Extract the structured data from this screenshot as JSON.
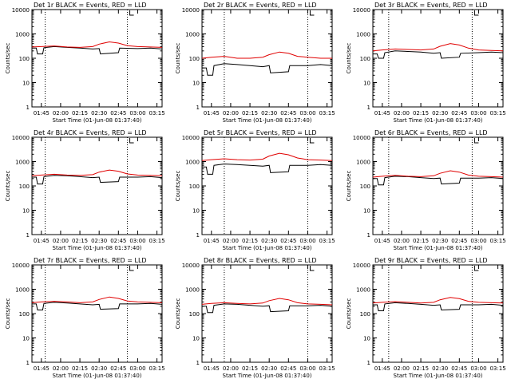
{
  "figure": {
    "ylabel": "Counts/sec",
    "xlabel": "Start Time (01-Jun-08 01:37:40)",
    "legend_suffix": "BLACK = Events, RED = LLD",
    "y_ticks": [
      "1",
      "10",
      "100",
      "1000",
      "10000"
    ],
    "x_ticks": [
      "01:45",
      "02:00",
      "02:15",
      "02:30",
      "02:45",
      "03:00",
      "03:15"
    ]
  },
  "colors": {
    "events": "#000000",
    "lld": "#e00000",
    "axes": "#000000"
  },
  "chart_data": [
    {
      "type": "line",
      "title": "Det 1r",
      "ylog": true,
      "ylim": [
        1,
        10000
      ],
      "xlim": [
        "01:37:40",
        "03:19:00"
      ],
      "x_ticks_label": [
        "01:45",
        "02:00",
        "02:15",
        "02:30",
        "02:45",
        "03:00",
        "03:15"
      ],
      "dotted_vlines": [
        "01:48",
        "02:52"
      ],
      "marker_L": "02:52",
      "series": [
        {
          "name": "BLACK = Events",
          "x": [
            "01:37:40",
            "01:41",
            "01:42",
            "01:46",
            "01:47",
            "01:55",
            "02:05",
            "02:15",
            "02:25",
            "02:30",
            "02:31",
            "02:45",
            "02:46",
            "03:00",
            "03:10",
            "03:19"
          ],
          "values": [
            260,
            260,
            150,
            150,
            270,
            300,
            280,
            260,
            240,
            250,
            150,
            170,
            260,
            250,
            260,
            240
          ]
        },
        {
          "name": "RED = LLD",
          "x": [
            "01:37:40",
            "01:45",
            "01:55",
            "02:05",
            "02:15",
            "02:25",
            "02:30",
            "02:38",
            "02:45",
            "02:52",
            "03:00",
            "03:10",
            "03:19"
          ],
          "values": [
            290,
            300,
            320,
            290,
            280,
            300,
            380,
            470,
            420,
            330,
            300,
            290,
            280
          ]
        }
      ]
    },
    {
      "type": "line",
      "title": "Det 2r",
      "ylog": true,
      "ylim": [
        1,
        10000
      ],
      "xlim": [
        "01:37:40",
        "03:19:00"
      ],
      "x_ticks_label": [
        "01:45",
        "02:00",
        "02:15",
        "02:30",
        "02:45",
        "03:00",
        "03:15"
      ],
      "dotted_vlines": [
        "01:55",
        "03:00"
      ],
      "marker_L": "03:00",
      "series": [
        {
          "name": "BLACK = Events",
          "x": [
            "01:37:40",
            "01:41",
            "01:42",
            "01:46",
            "01:47",
            "01:55",
            "02:05",
            "02:15",
            "02:25",
            "02:30",
            "02:31",
            "02:45",
            "02:46",
            "03:00",
            "03:10",
            "03:19"
          ],
          "values": [
            40,
            40,
            20,
            20,
            50,
            60,
            55,
            50,
            45,
            50,
            25,
            28,
            50,
            50,
            55,
            50
          ]
        },
        {
          "name": "RED = LLD",
          "x": [
            "01:37:40",
            "01:45",
            "01:55",
            "02:05",
            "02:15",
            "02:25",
            "02:30",
            "02:38",
            "02:45",
            "02:52",
            "03:00",
            "03:10",
            "03:19"
          ],
          "values": [
            100,
            110,
            120,
            100,
            100,
            110,
            140,
            180,
            160,
            120,
            110,
            100,
            100
          ]
        }
      ]
    },
    {
      "type": "line",
      "title": "Det 3r",
      "ylog": true,
      "ylim": [
        1,
        10000
      ],
      "xlim": [
        "01:37:40",
        "03:19:00"
      ],
      "x_ticks_label": [
        "01:45",
        "02:00",
        "02:15",
        "02:30",
        "02:45",
        "03:00",
        "03:15"
      ],
      "dotted_vlines": [
        "01:50",
        "02:55"
      ],
      "marker_L": "02:55",
      "series": [
        {
          "name": "BLACK = Events",
          "x": [
            "01:37:40",
            "01:41",
            "01:42",
            "01:46",
            "01:47",
            "01:55",
            "02:05",
            "02:15",
            "02:25",
            "02:30",
            "02:31",
            "02:45",
            "02:46",
            "03:00",
            "03:10",
            "03:19"
          ],
          "values": [
            150,
            150,
            100,
            100,
            170,
            200,
            190,
            180,
            160,
            170,
            100,
            110,
            160,
            170,
            180,
            170
          ]
        },
        {
          "name": "RED = LLD",
          "x": [
            "01:37:40",
            "01:45",
            "01:55",
            "02:05",
            "02:15",
            "02:25",
            "02:30",
            "02:38",
            "02:45",
            "02:52",
            "03:00",
            "03:10",
            "03:19"
          ],
          "values": [
            200,
            220,
            240,
            230,
            220,
            240,
            310,
            400,
            350,
            260,
            220,
            210,
            200
          ]
        }
      ]
    },
    {
      "type": "line",
      "title": "Det 4r",
      "ylog": true,
      "ylim": [
        1,
        10000
      ],
      "xlim": [
        "01:37:40",
        "03:19:00"
      ],
      "x_ticks_label": [
        "01:45",
        "02:00",
        "02:15",
        "02:30",
        "02:45",
        "03:00",
        "03:15"
      ],
      "dotted_vlines": [
        "01:48",
        "02:52"
      ],
      "marker_L": "02:52",
      "series": [
        {
          "name": "BLACK = Events",
          "x": [
            "01:37:40",
            "01:41",
            "01:42",
            "01:46",
            "01:47",
            "01:55",
            "02:05",
            "02:15",
            "02:25",
            "02:30",
            "02:31",
            "02:45",
            "02:46",
            "03:00",
            "03:10",
            "03:19"
          ],
          "values": [
            230,
            230,
            120,
            120,
            240,
            270,
            260,
            240,
            220,
            230,
            140,
            150,
            230,
            230,
            240,
            220
          ]
        },
        {
          "name": "RED = LLD",
          "x": [
            "01:37:40",
            "01:45",
            "01:55",
            "02:05",
            "02:15",
            "02:25",
            "02:30",
            "02:38",
            "02:45",
            "02:52",
            "03:00",
            "03:10",
            "03:19"
          ],
          "values": [
            260,
            280,
            300,
            280,
            270,
            290,
            370,
            450,
            400,
            310,
            280,
            270,
            260
          ]
        }
      ]
    },
    {
      "type": "line",
      "title": "Det 5r",
      "ylog": true,
      "ylim": [
        1,
        10000
      ],
      "xlim": [
        "01:37:40",
        "03:19:00"
      ],
      "x_ticks_label": [
        "01:45",
        "02:00",
        "02:15",
        "02:30",
        "02:45",
        "03:00",
        "03:15"
      ],
      "dotted_vlines": [
        "01:55",
        "03:00"
      ],
      "marker_L": "03:00",
      "series": [
        {
          "name": "BLACK = Events",
          "x": [
            "01:37:40",
            "01:41",
            "01:42",
            "01:46",
            "01:47",
            "01:55",
            "02:05",
            "02:15",
            "02:25",
            "02:30",
            "02:31",
            "02:45",
            "02:46",
            "03:00",
            "03:10",
            "03:19"
          ],
          "values": [
            600,
            600,
            300,
            300,
            700,
            800,
            750,
            700,
            650,
            700,
            350,
            380,
            700,
            700,
            750,
            700
          ]
        },
        {
          "name": "RED = LLD",
          "x": [
            "01:37:40",
            "01:45",
            "01:55",
            "02:05",
            "02:15",
            "02:25",
            "02:30",
            "02:38",
            "02:45",
            "02:52",
            "03:00",
            "03:10",
            "03:19"
          ],
          "values": [
            1100,
            1200,
            1300,
            1200,
            1150,
            1250,
            1700,
            2200,
            1900,
            1400,
            1200,
            1150,
            1100
          ]
        }
      ]
    },
    {
      "type": "line",
      "title": "Det 6r",
      "ylog": true,
      "ylim": [
        1,
        10000
      ],
      "xlim": [
        "01:37:40",
        "03:19:00"
      ],
      "x_ticks_label": [
        "01:45",
        "02:00",
        "02:15",
        "02:30",
        "02:45",
        "03:00",
        "03:15"
      ],
      "dotted_vlines": [
        "01:50",
        "02:55"
      ],
      "marker_L": "02:55",
      "series": [
        {
          "name": "BLACK = Events",
          "x": [
            "01:37:40",
            "01:41",
            "01:42",
            "01:46",
            "01:47",
            "01:55",
            "02:05",
            "02:15",
            "02:25",
            "02:30",
            "02:31",
            "02:45",
            "02:46",
            "03:00",
            "03:10",
            "03:19"
          ],
          "values": [
            200,
            200,
            110,
            110,
            220,
            250,
            240,
            220,
            200,
            210,
            120,
            130,
            210,
            210,
            220,
            200
          ]
        },
        {
          "name": "RED = LLD",
          "x": [
            "01:37:40",
            "01:45",
            "01:55",
            "02:05",
            "02:15",
            "02:25",
            "02:30",
            "02:38",
            "02:45",
            "02:52",
            "03:00",
            "03:10",
            "03:19"
          ],
          "values": [
            230,
            250,
            270,
            250,
            240,
            260,
            330,
            420,
            370,
            280,
            250,
            240,
            230
          ]
        }
      ]
    },
    {
      "type": "line",
      "title": "Det 7r",
      "ylog": true,
      "ylim": [
        1,
        10000
      ],
      "xlim": [
        "01:37:40",
        "03:19:00"
      ],
      "x_ticks_label": [
        "01:45",
        "02:00",
        "02:15",
        "02:30",
        "02:45",
        "03:00",
        "03:15"
      ],
      "dotted_vlines": [
        "01:48",
        "02:52"
      ],
      "marker_L": "02:52",
      "series": [
        {
          "name": "BLACK = Events",
          "x": [
            "01:37:40",
            "01:41",
            "01:42",
            "01:46",
            "01:47",
            "01:55",
            "02:05",
            "02:15",
            "02:25",
            "02:30",
            "02:31",
            "02:45",
            "02:46",
            "03:00",
            "03:10",
            "03:19"
          ],
          "values": [
            250,
            250,
            140,
            140,
            260,
            290,
            270,
            250,
            230,
            240,
            150,
            160,
            250,
            250,
            260,
            240
          ]
        },
        {
          "name": "RED = LLD",
          "x": [
            "01:37:40",
            "01:45",
            "01:55",
            "02:05",
            "02:15",
            "02:25",
            "02:30",
            "02:38",
            "02:45",
            "02:52",
            "03:00",
            "03:10",
            "03:19"
          ],
          "values": [
            280,
            300,
            320,
            300,
            280,
            300,
            380,
            480,
            420,
            330,
            300,
            290,
            280
          ]
        }
      ]
    },
    {
      "type": "line",
      "title": "Det 8r",
      "ylog": true,
      "ylim": [
        1,
        10000
      ],
      "xlim": [
        "01:37:40",
        "03:19:00"
      ],
      "x_ticks_label": [
        "01:45",
        "02:00",
        "02:15",
        "02:30",
        "02:45",
        "03:00",
        "03:15"
      ],
      "dotted_vlines": [
        "01:55",
        "03:00"
      ],
      "marker_L": "03:00",
      "series": [
        {
          "name": "BLACK = Events",
          "x": [
            "01:37:40",
            "01:41",
            "01:42",
            "01:46",
            "01:47",
            "01:55",
            "02:05",
            "02:15",
            "02:25",
            "02:30",
            "02:31",
            "02:45",
            "02:46",
            "03:00",
            "03:10",
            "03:19"
          ],
          "values": [
            200,
            200,
            110,
            110,
            220,
            250,
            240,
            220,
            200,
            210,
            120,
            130,
            210,
            210,
            220,
            200
          ]
        },
        {
          "name": "RED = LLD",
          "x": [
            "01:37:40",
            "01:45",
            "01:55",
            "02:05",
            "02:15",
            "02:25",
            "02:30",
            "02:38",
            "02:45",
            "02:52",
            "03:00",
            "03:10",
            "03:19"
          ],
          "values": [
            240,
            260,
            280,
            260,
            250,
            270,
            340,
            420,
            370,
            280,
            250,
            240,
            230
          ]
        }
      ]
    },
    {
      "type": "line",
      "title": "Det 9r",
      "ylog": true,
      "ylim": [
        1,
        10000
      ],
      "xlim": [
        "01:37:40",
        "03:19:00"
      ],
      "x_ticks_label": [
        "01:45",
        "02:00",
        "02:15",
        "02:30",
        "02:45",
        "03:00",
        "03:15"
      ],
      "dotted_vlines": [
        "01:50",
        "02:55"
      ],
      "marker_L": "02:55",
      "series": [
        {
          "name": "BLACK = Events",
          "x": [
            "01:37:40",
            "01:41",
            "01:42",
            "01:46",
            "01:47",
            "01:55",
            "02:05",
            "02:15",
            "02:25",
            "02:30",
            "02:31",
            "02:45",
            "02:46",
            "03:00",
            "03:10",
            "03:19"
          ],
          "values": [
            230,
            230,
            130,
            130,
            250,
            280,
            260,
            240,
            220,
            230,
            140,
            150,
            230,
            230,
            240,
            220
          ]
        },
        {
          "name": "RED = LLD",
          "x": [
            "01:37:40",
            "01:45",
            "01:55",
            "02:05",
            "02:15",
            "02:25",
            "02:30",
            "02:38",
            "02:45",
            "02:52",
            "03:00",
            "03:10",
            "03:19"
          ],
          "values": [
            270,
            290,
            310,
            290,
            270,
            290,
            370,
            460,
            410,
            320,
            290,
            280,
            270
          ]
        }
      ]
    }
  ]
}
